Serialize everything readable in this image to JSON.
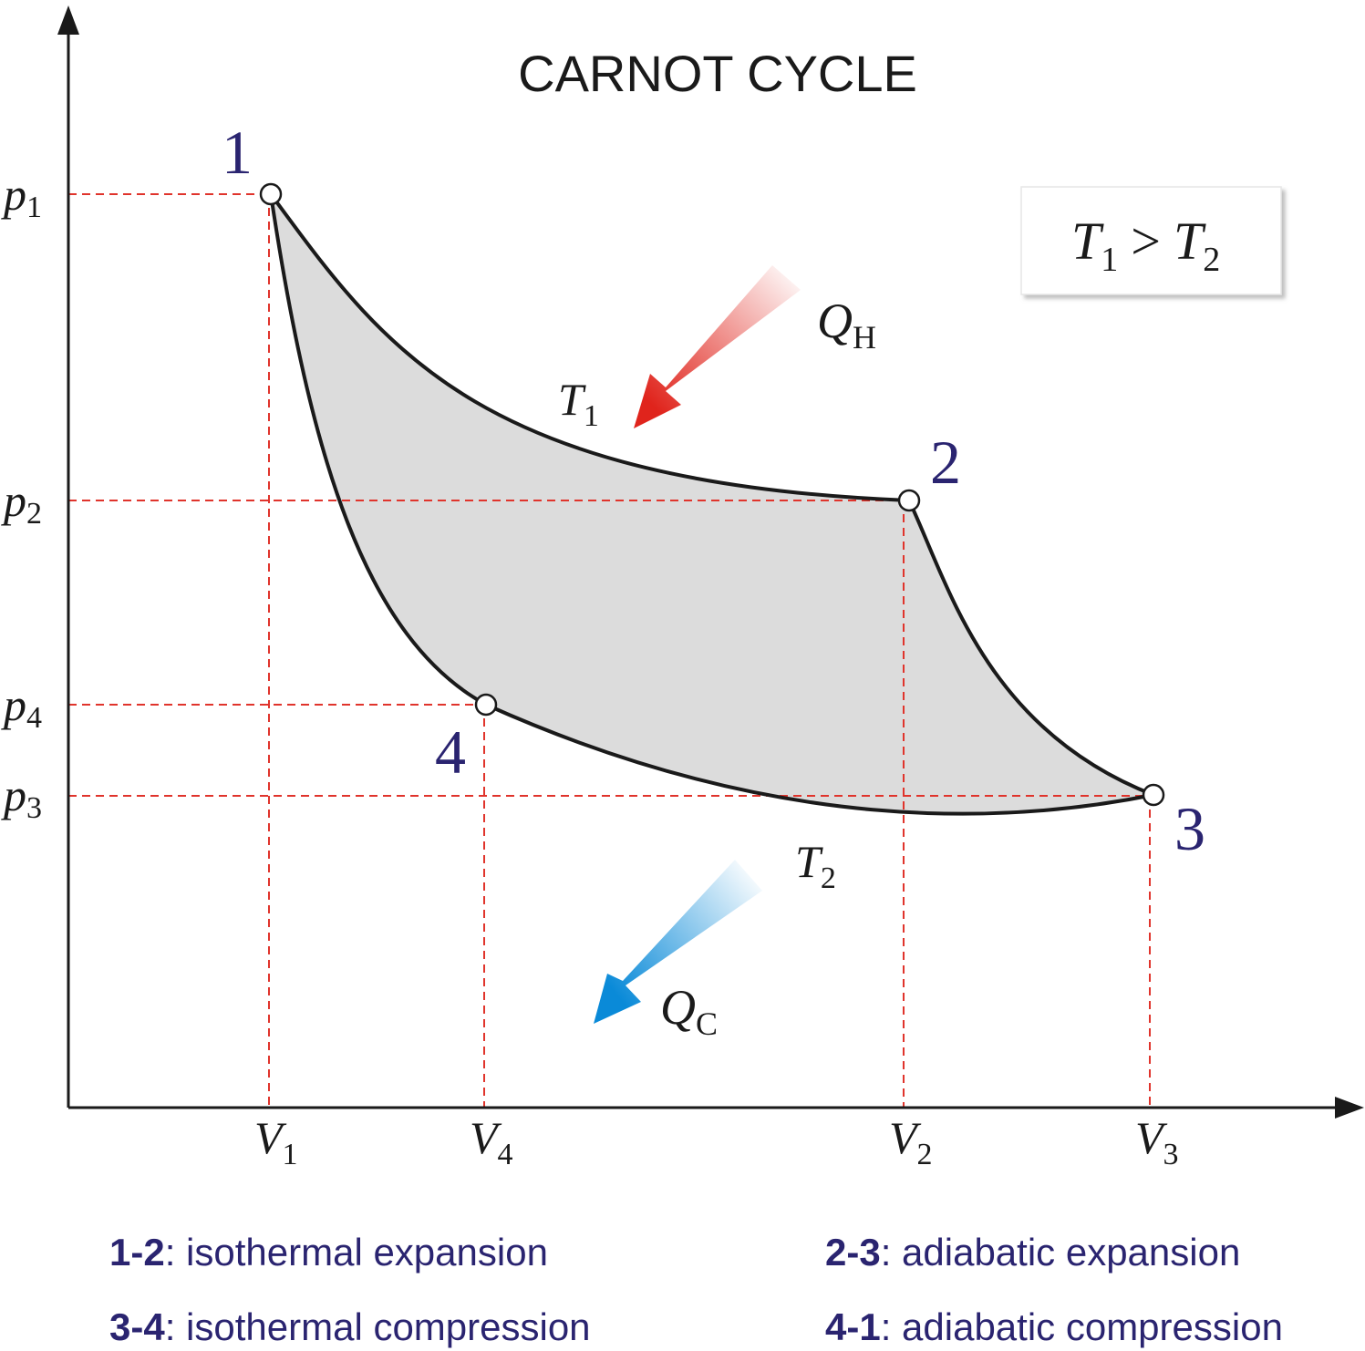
{
  "title": "CARNOT CYCLE",
  "points": [
    {
      "id": "1",
      "label": "1"
    },
    {
      "id": "2",
      "label": "2"
    },
    {
      "id": "3",
      "label": "3"
    },
    {
      "id": "4",
      "label": "4"
    }
  ],
  "axes": {
    "pressure_ticks": [
      {
        "base": "p",
        "sub": "1"
      },
      {
        "base": "p",
        "sub": "2"
      },
      {
        "base": "p",
        "sub": "4"
      },
      {
        "base": "p",
        "sub": "3"
      }
    ],
    "volume_ticks": [
      {
        "base": "V",
        "sub": "1"
      },
      {
        "base": "V",
        "sub": "4"
      },
      {
        "base": "V",
        "sub": "2"
      },
      {
        "base": "V",
        "sub": "3"
      }
    ]
  },
  "temperatures": {
    "hot": {
      "base": "T",
      "sub": "1"
    },
    "cold": {
      "base": "T",
      "sub": "2"
    }
  },
  "heat": {
    "in": {
      "base": "Q",
      "sub": "H",
      "color": "#e0241c"
    },
    "out": {
      "base": "Q",
      "sub": "C",
      "color": "#0a8ad8"
    }
  },
  "condition": {
    "left": "T",
    "left_sub": "1",
    "op": ">",
    "right": "T",
    "right_sub": "2"
  },
  "fill_color": "#dcdcdc",
  "guide_color": "#e0342c",
  "legend": [
    {
      "key": "1-2",
      "text": ": isothermal expansion"
    },
    {
      "key": "2-3",
      "text": ": adiabatic expansion"
    },
    {
      "key": "3-4",
      "text": ": isothermal compression"
    },
    {
      "key": "4-1",
      "text": ": adiabatic compression"
    }
  ]
}
